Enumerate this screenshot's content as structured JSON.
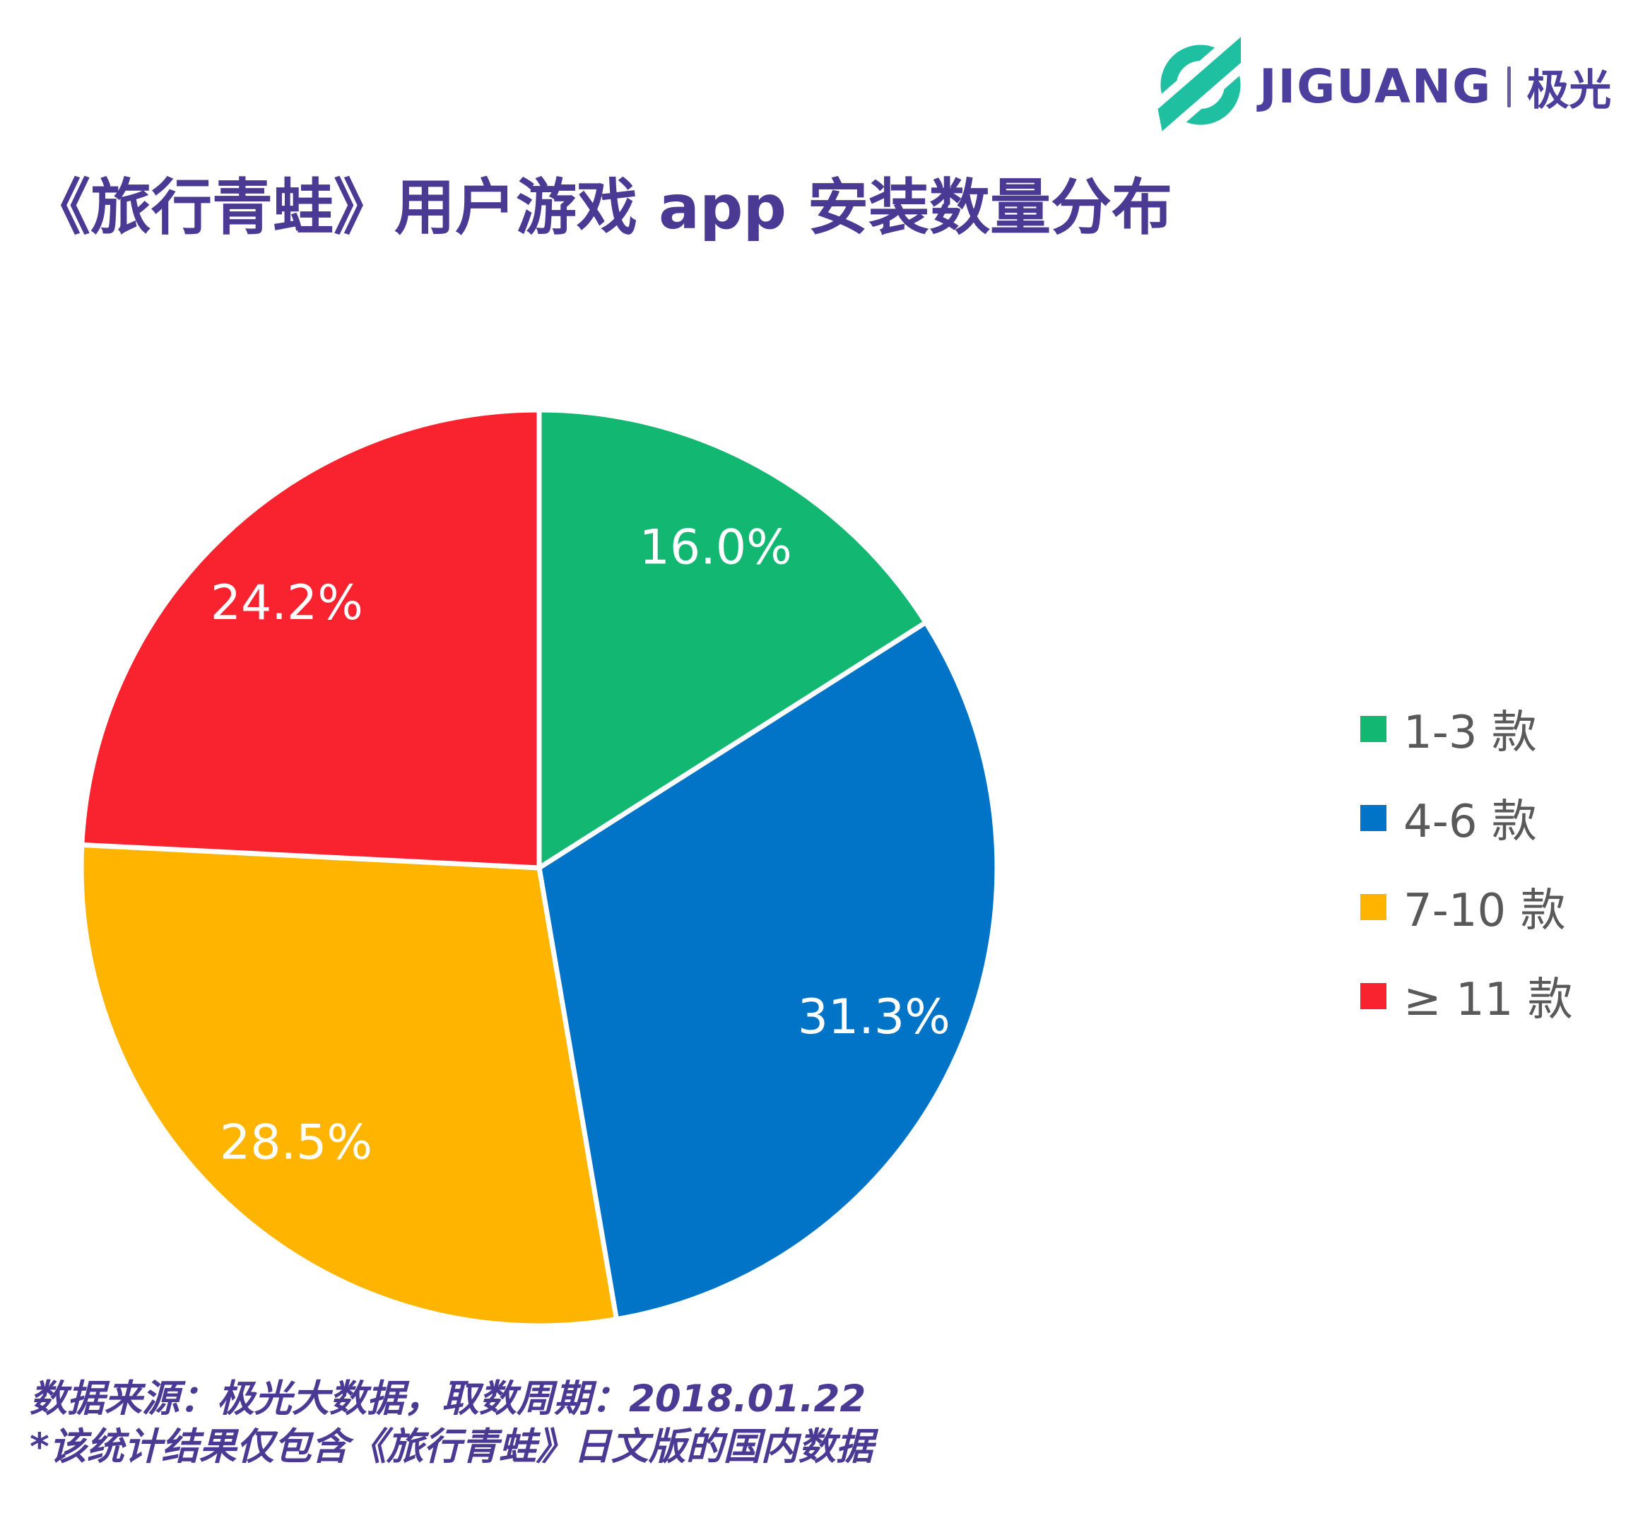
{
  "brand": {
    "wordmark": "JIGUANG",
    "separator": "|",
    "cjk_name": "极光",
    "icon_color": "#1FBFA2",
    "text_color": "#4C3E9D"
  },
  "header": {
    "title": "《旅行青蛙》用户游戏 app 安装数量分布",
    "title_color": "#4A3A93"
  },
  "chart_data": {
    "type": "pie",
    "title": "《旅行青蛙》用户游戏 app 安装数量分布",
    "unit": "%",
    "start_angle": "top",
    "direction": "clockwise",
    "legend_position": "right",
    "label_color": "#FFFFFF",
    "slice_border_color": "#FFFFFF",
    "slices": [
      {
        "label": "1-3 款",
        "value": 16.0,
        "color": "#12B872"
      },
      {
        "label": "4-6 款",
        "value": 31.3,
        "color": "#0274C8"
      },
      {
        "label": "7-10 款",
        "value": 28.5,
        "color": "#FFB400"
      },
      {
        "label": "≥ 11 款",
        "value": 24.2,
        "color": "#F8232E"
      }
    ]
  },
  "footer": {
    "line1": "数据来源：极光大数据，取数周期：2018.01.22",
    "line2": "*该统计结果仅包含《旅行青蛙》日文版的国内数据",
    "color": "#4A3A93"
  }
}
